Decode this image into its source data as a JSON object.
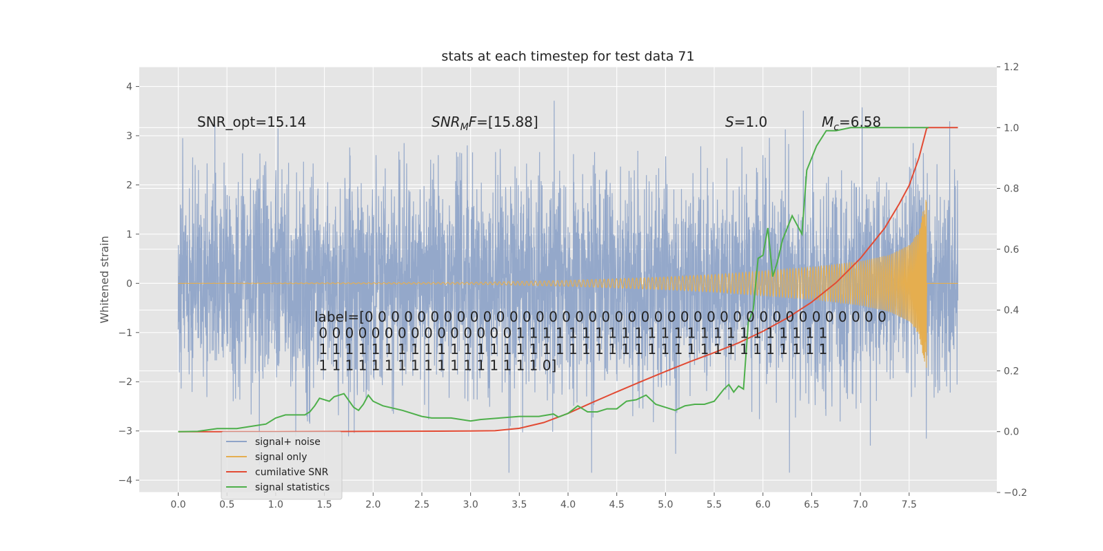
{
  "chart_data": {
    "type": "line",
    "title": "stats at each timestep for test data 71",
    "ylabel": "Whitened strain",
    "xlim": [
      -0.4,
      8.4
    ],
    "ylim": [
      -4.25,
      4.4
    ],
    "y2lim": [
      -0.2,
      1.2
    ],
    "x_ticks": [
      0.0,
      0.5,
      1.0,
      1.5,
      2.0,
      2.5,
      3.0,
      3.5,
      4.0,
      4.5,
      5.0,
      5.5,
      6.0,
      6.5,
      7.0,
      7.5
    ],
    "x_tick_labels": [
      "0.0",
      "0.5",
      "1.0",
      "1.5",
      "2.0",
      "2.5",
      "3.0",
      "3.5",
      "4.0",
      "4.5",
      "5.0",
      "5.5",
      "6.0",
      "6.5",
      "7.0",
      "7.5"
    ],
    "y_ticks": [
      4,
      3,
      2,
      1,
      0,
      -1,
      -2,
      -3,
      -4
    ],
    "y_tick_labels": [
      "4",
      "3",
      "2",
      "1",
      "0",
      "−1",
      "−2",
      "−3",
      "−4"
    ],
    "y2_ticks": [
      1.2,
      1.0,
      0.8,
      0.6,
      0.4,
      0.2,
      0.0,
      -0.2
    ],
    "y2_tick_labels": [
      "1.2",
      "1.0",
      "0.8",
      "0.6",
      "0.4",
      "0.2",
      "0.0",
      "−0.2"
    ],
    "grid": true,
    "legend_position": "lower-left",
    "colors": {
      "signal_noise": "#8fa4c8",
      "signal_only": "#e5ae4f",
      "cumulative_snr": "#e24a33",
      "signal_statistics": "#4daf4a",
      "plot_bg": "#e5e5e5"
    },
    "annotations": {
      "snr_opt": "SNR_opt=15.14",
      "snr_mf_main": "SNR",
      "snr_mf_sub": "M",
      "snr_mf_rest": "F=[15.88]",
      "s_main": "S",
      "s_rest": "=1.0",
      "mc_main": "M",
      "mc_sub": "c",
      "mc_rest": "=6.58"
    },
    "label_lines": [
      "label=[0 0 0 0 0 0 0 0 0 0 0 0 0 0 0 0 0 0 0 0 0 0 0 0 0 0 0 0 0 0 0 0 0 0 0 0 0 0 0 0",
      " 0 0 0 0 0 0 0 0 0 0 0 0 0 0 0 1 1 1 1 1 1 1 1 1 1 1 1 1 1 1 1 1 1 1 1 1 1 1 1",
      " 1 1 1 1 1 1 1 1 1 1 1 1 1 1 1 1 1 1 1 1 1 1 1 1 1 1 1 1 1 1 1 1 1 1 1 1 1 1 1",
      " 1 1 1 1 1 1 1 1 1 1 1 1 1 1 1 1 1 0]"
    ],
    "series": [
      {
        "name": "signal+ noise",
        "axis": "left",
        "summary": "whitened strain noise, 0 to 8 s, amplitude about ±2.5 with spikes to ±4"
      },
      {
        "name": "signal only",
        "axis": "left",
        "envelope": {
          "x": [
            0.0,
            3.0,
            4.0,
            5.0,
            5.5,
            6.0,
            6.5,
            7.0,
            7.3,
            7.5,
            7.6,
            7.65,
            7.68
          ],
          "amp": [
            0.0,
            0.02,
            0.06,
            0.13,
            0.18,
            0.25,
            0.33,
            0.45,
            0.58,
            0.78,
            1.05,
            1.55,
            1.75
          ]
        }
      },
      {
        "name": "cumilative SNR",
        "axis": "right",
        "x": [
          0.0,
          1.0,
          2.0,
          3.0,
          3.25,
          3.5,
          3.75,
          4.0,
          4.25,
          4.5,
          4.75,
          5.0,
          5.25,
          5.5,
          5.75,
          6.0,
          6.25,
          6.5,
          6.75,
          7.0,
          7.25,
          7.4,
          7.5,
          7.6,
          7.68,
          7.7,
          8.0
        ],
        "values": [
          0.0,
          0.0,
          0.001,
          0.002,
          0.003,
          0.011,
          0.03,
          0.06,
          0.096,
          0.131,
          0.165,
          0.198,
          0.23,
          0.26,
          0.292,
          0.33,
          0.374,
          0.426,
          0.49,
          0.57,
          0.67,
          0.75,
          0.81,
          0.9,
          0.998,
          1.0,
          1.0
        ]
      },
      {
        "name": "signal statistics",
        "axis": "right",
        "x": [
          0.0,
          0.2,
          0.4,
          0.6,
          0.8,
          0.9,
          1.0,
          1.1,
          1.2,
          1.3,
          1.35,
          1.4,
          1.45,
          1.55,
          1.6,
          1.7,
          1.8,
          1.85,
          1.9,
          1.95,
          2.0,
          2.1,
          2.3,
          2.5,
          2.6,
          2.8,
          3.0,
          3.1,
          3.3,
          3.5,
          3.7,
          3.85,
          3.9,
          4.0,
          4.1,
          4.2,
          4.3,
          4.4,
          4.5,
          4.6,
          4.7,
          4.8,
          4.9,
          5.0,
          5.1,
          5.2,
          5.3,
          5.4,
          5.5,
          5.55,
          5.6,
          5.65,
          5.7,
          5.75,
          5.8,
          5.85,
          5.9,
          5.95,
          6.0,
          6.05,
          6.1,
          6.15,
          6.2,
          6.3,
          6.4,
          6.45,
          6.55,
          6.65,
          6.75,
          6.9,
          7.0,
          7.2,
          7.5,
          7.7
        ],
        "values": [
          0.0,
          0.001,
          0.01,
          0.01,
          0.02,
          0.025,
          0.045,
          0.055,
          0.055,
          0.055,
          0.065,
          0.085,
          0.11,
          0.1,
          0.115,
          0.125,
          0.08,
          0.07,
          0.09,
          0.12,
          0.1,
          0.085,
          0.07,
          0.05,
          0.045,
          0.045,
          0.035,
          0.04,
          0.045,
          0.05,
          0.05,
          0.058,
          0.048,
          0.06,
          0.085,
          0.065,
          0.065,
          0.075,
          0.075,
          0.1,
          0.105,
          0.12,
          0.09,
          0.08,
          0.07,
          0.085,
          0.09,
          0.09,
          0.1,
          0.12,
          0.14,
          0.155,
          0.13,
          0.15,
          0.14,
          0.36,
          0.4,
          0.57,
          0.58,
          0.67,
          0.51,
          0.56,
          0.63,
          0.71,
          0.65,
          0.86,
          0.94,
          0.99,
          0.99,
          1.0,
          1.0,
          1.0,
          1.0,
          1.0
        ]
      }
    ]
  }
}
